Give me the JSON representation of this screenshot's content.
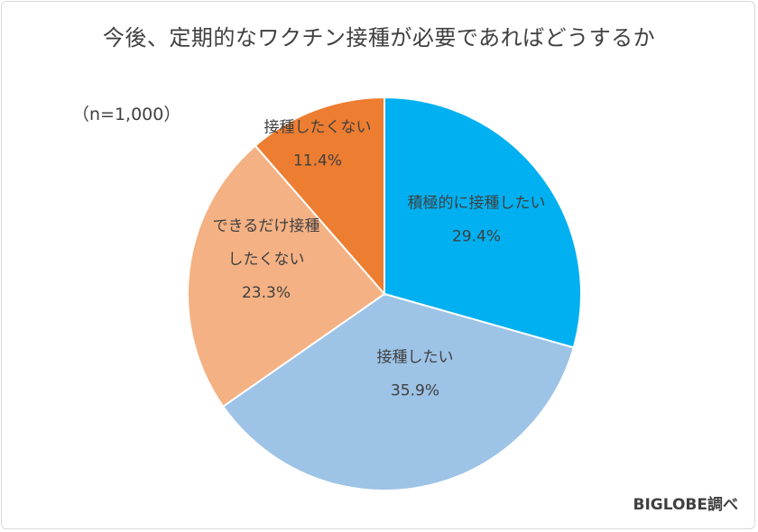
{
  "title": "今後、定期的なワクチン接種が必要であればどうするか",
  "sample_note": "（n=1,000）",
  "source": "BIGLOBE調べ",
  "chart_data": {
    "type": "pie",
    "title": "今後、定期的なワクチン接種が必要であればどうするか",
    "start": "12 o'clock",
    "direction": "clockwise",
    "slices": [
      {
        "label_lines": [
          "積極的に接種したい"
        ],
        "value": 29.4,
        "value_label": "29.4%",
        "color": "#00b0f0"
      },
      {
        "label_lines": [
          "接種したい"
        ],
        "value": 35.9,
        "value_label": "35.9%",
        "color": "#9dc3e6"
      },
      {
        "label_lines": [
          "できるだけ接種",
          "したくない"
        ],
        "value": 23.3,
        "value_label": "23.3%",
        "color": "#f4b183"
      },
      {
        "label_lines": [
          "接種したくない"
        ],
        "value": 11.4,
        "value_label": "11.4%",
        "color": "#ed7d31"
      }
    ]
  }
}
